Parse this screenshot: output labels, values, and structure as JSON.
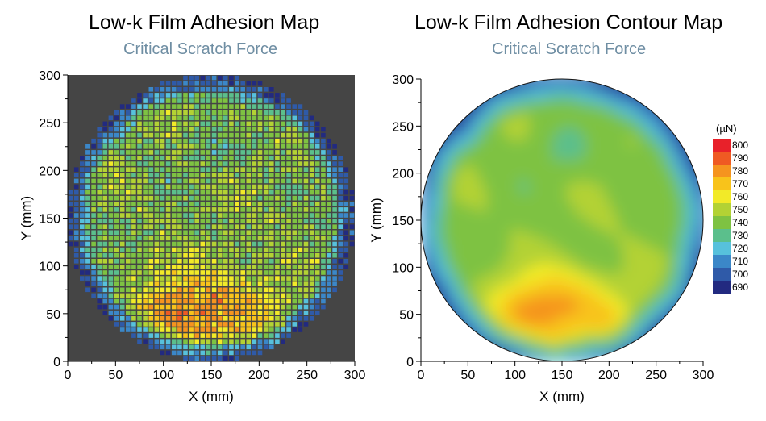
{
  "chart_data": [
    {
      "type": "heatmap",
      "title": "Low-k Film Adhesion Map",
      "subtitle": "Critical Scratch Force",
      "xlabel": "X (mm)",
      "ylabel": "Y (mm)",
      "xlim": [
        0,
        300
      ],
      "ylim": [
        0,
        300
      ],
      "xticks": [
        0,
        50,
        100,
        150,
        200,
        250,
        300
      ],
      "yticks": [
        0,
        50,
        100,
        150,
        200,
        250,
        300
      ],
      "background": "#454545",
      "cell_pitch_mm": 6,
      "wafer_center_mm": [
        150,
        150
      ],
      "wafer_radius_mm": 150,
      "value_unit": "µN",
      "value_range": [
        690,
        800
      ],
      "trend": "values near 740–760 in the upper half, rising to 770–800 around X≈100–200, Y≈25–100; 690–720 near the wafer edge"
    },
    {
      "type": "contour",
      "title": "Low-k Film Adhesion Contour Map",
      "subtitle": "Critical Scratch Force",
      "xlabel": "X (mm)",
      "ylabel": "Y (mm)",
      "xlim": [
        0,
        300
      ],
      "ylim": [
        0,
        300
      ],
      "xticks": [
        0,
        50,
        100,
        150,
        200,
        250,
        300
      ],
      "yticks": [
        0,
        50,
        100,
        150,
        200,
        250,
        300
      ],
      "legend_unit": "(µN)",
      "legend_position": "right",
      "levels": [
        {
          "value": 800,
          "color": "#e8212a"
        },
        {
          "value": 790,
          "color": "#ef5a23"
        },
        {
          "value": 780,
          "color": "#f5941f"
        },
        {
          "value": 770,
          "color": "#f8c31b"
        },
        {
          "value": 760,
          "color": "#f2ea28"
        },
        {
          "value": 750,
          "color": "#b3d234"
        },
        {
          "value": 740,
          "color": "#7ec242"
        },
        {
          "value": 730,
          "color": "#5bbf8c"
        },
        {
          "value": 720,
          "color": "#57c1dc"
        },
        {
          "value": 710,
          "color": "#3b87c8"
        },
        {
          "value": 700,
          "color": "#2f5aa8"
        },
        {
          "value": 690,
          "color": "#222a80"
        }
      ]
    }
  ]
}
